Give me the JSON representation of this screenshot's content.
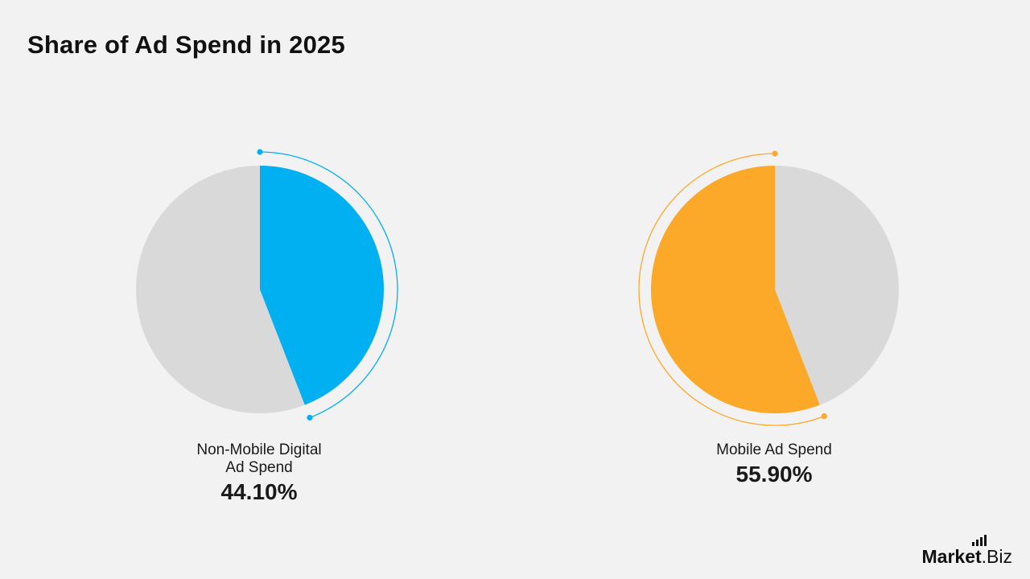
{
  "title": "Share of Ad Spend in 2025",
  "chart_data": {
    "type": "pie",
    "title": "Share of Ad Spend in 2025",
    "charts": [
      {
        "label_lines": [
          "Non-Mobile Digital",
          "Ad Spend"
        ],
        "value": 44.1,
        "value_label": "44.10%",
        "color": "#00b0f0",
        "remainder_color": "#d9d9d9",
        "direction": "clockwise"
      },
      {
        "label_lines": [
          "Mobile Ad Spend"
        ],
        "value": 55.9,
        "value_label": "55.90%",
        "color": "#fca828",
        "remainder_color": "#d9d9d9",
        "direction": "counterclockwise"
      }
    ]
  },
  "logo": {
    "bold": "Market",
    "light": ".Biz"
  }
}
